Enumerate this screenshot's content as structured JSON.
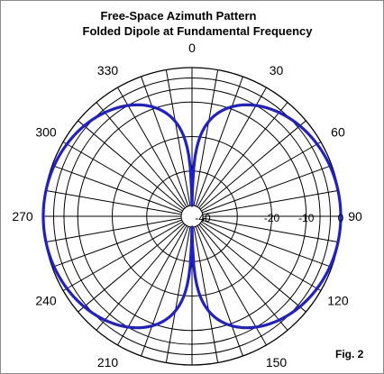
{
  "chart_data": {
    "type": "polar",
    "title": "Free-Space Azimuth Pattern",
    "subtitle": "Folded Dipole at Fundamental Frequency",
    "figure_label": "Fig. 2",
    "angle_ticks": [
      "0",
      "30",
      "60",
      "90",
      "120",
      "150",
      "180",
      "210",
      "240",
      "270",
      "300",
      "330"
    ],
    "angle_tick_values": [
      0,
      30,
      60,
      90,
      120,
      150,
      180,
      210,
      240,
      270,
      300,
      330
    ],
    "radial_ticks": [
      "0",
      "-10",
      "-20",
      "-40"
    ],
    "radial_tick_values_db": [
      0,
      -10,
      -20,
      -40
    ],
    "radial_range_db": [
      -40,
      0
    ],
    "spoke_step_deg": 10,
    "grid": true,
    "series": [
      {
        "color": "#1f1fd0",
        "pattern": "cosine dipole (figure-eight), maxima at 90 and 270, nulls at 0 and 180",
        "angle_deg": [
          0,
          10,
          20,
          30,
          45,
          60,
          75,
          90,
          105,
          120,
          135,
          150,
          160,
          170,
          180,
          190,
          200,
          210,
          225,
          240,
          255,
          270,
          285,
          300,
          315,
          330,
          340,
          350
        ],
        "gain_db": [
          -40,
          -15.2,
          -9.3,
          -6.0,
          -3.0,
          -1.2,
          -0.3,
          0,
          -0.3,
          -1.2,
          -3.0,
          -6.0,
          -9.3,
          -15.2,
          -40,
          -15.2,
          -9.3,
          -6.0,
          -3.0,
          -1.2,
          -0.3,
          0,
          -0.3,
          -1.2,
          -3.0,
          -6.0,
          -9.3,
          -15.2
        ]
      }
    ]
  }
}
